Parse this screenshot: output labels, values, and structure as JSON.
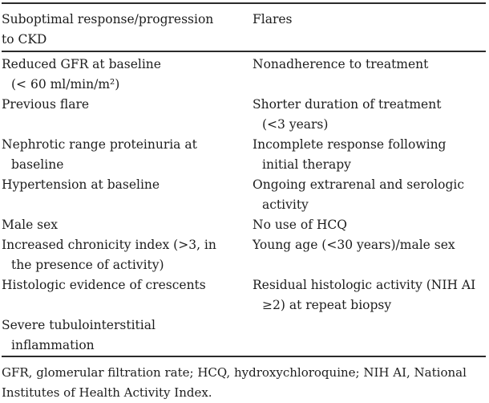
{
  "colors": {
    "text": "#1d1d1d",
    "rule": "#2b2b2b",
    "background": "#ffffff"
  },
  "table": {
    "header": {
      "left_lines": [
        "Suboptimal response/progression",
        "to CKD"
      ],
      "right_lines": [
        "Flares"
      ]
    },
    "rows": [
      {
        "left": [
          "Reduced GFR at baseline",
          "(< 60 ml/min/m²)"
        ],
        "right": [
          "Nonadherence to treatment"
        ]
      },
      {
        "left": [
          "Previous flare"
        ],
        "right": [
          "Shorter duration of treatment",
          "(<3 years)"
        ]
      },
      {
        "left": [
          "Nephrotic range proteinuria at",
          "baseline"
        ],
        "right": [
          "Incomplete response following",
          "initial therapy"
        ]
      },
      {
        "left": [
          "Hypertension at baseline"
        ],
        "right": [
          "Ongoing extrarenal and serologic",
          "activity"
        ]
      },
      {
        "left": [
          "Male sex"
        ],
        "right": [
          "No use of HCQ"
        ]
      },
      {
        "left": [
          "Increased chronicity index (>3, in",
          "the presence of activity)"
        ],
        "right": [
          "Young age (<30 years)/male sex"
        ]
      },
      {
        "left": [
          "Histologic evidence of crescents"
        ],
        "right": [
          "Residual histologic activity (NIH AI",
          "≥2) at repeat biopsy"
        ]
      },
      {
        "left": [
          "Severe tubulointerstitial",
          "inflammation"
        ],
        "right": []
      }
    ]
  },
  "footnote": {
    "lines": [
      "GFR, glomerular filtration rate; HCQ, hydroxychloroquine; NIH AI, National",
      "Institutes of Health Activity Index."
    ]
  }
}
